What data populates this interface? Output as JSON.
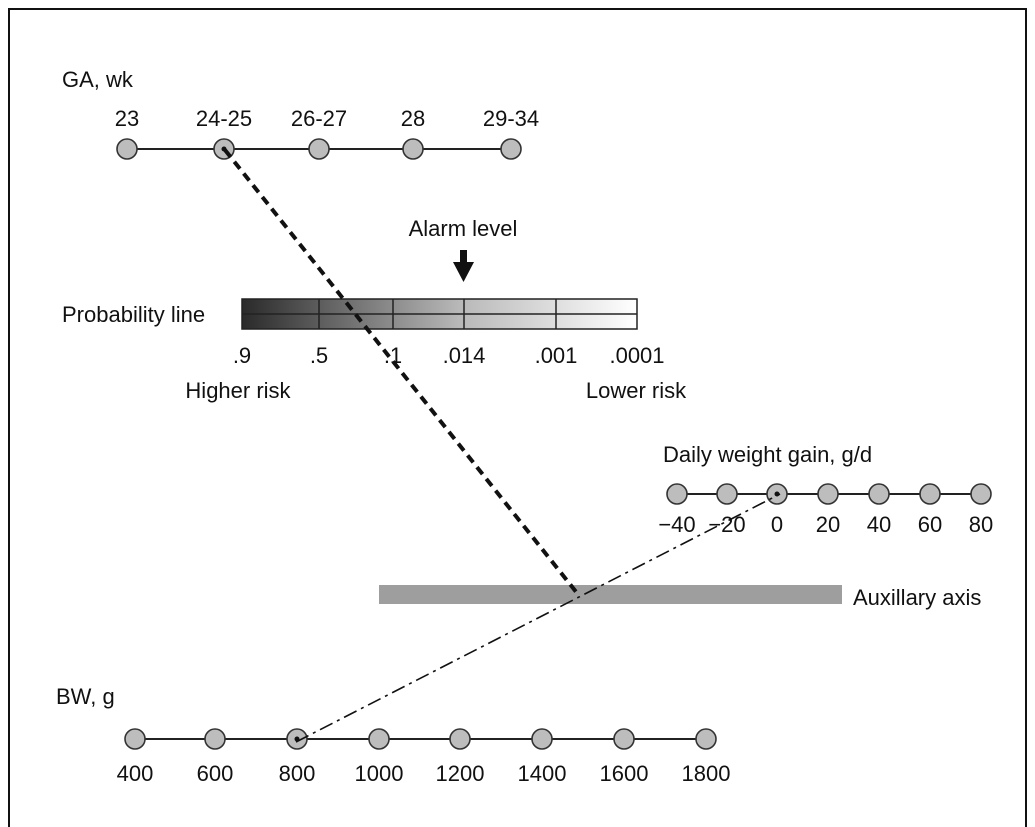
{
  "ga": {
    "title": "GA, wk",
    "labels": [
      "23",
      "24-25",
      "26-27",
      "28",
      "29-34"
    ],
    "selected_index": 1
  },
  "probability": {
    "title": "Probability line",
    "labels": [
      ".9",
      ".5",
      ".1",
      ".014",
      ".001",
      ".0001"
    ],
    "higher_label": "Higher risk",
    "lower_label": "Lower risk",
    "alarm_label": "Alarm level"
  },
  "weight_gain": {
    "title": "Daily weight gain, g/d",
    "labels": [
      "−40",
      "−20",
      "0",
      "20",
      "40",
      "60",
      "80"
    ],
    "selected_index": 2
  },
  "auxiliary": {
    "label": "Auxillary axis"
  },
  "bw": {
    "title": "BW, g",
    "labels": [
      "400",
      "600",
      "800",
      "1000",
      "1200",
      "1400",
      "1600",
      "1800"
    ],
    "selected_index": 2
  },
  "colors": {
    "node_fill": "#bdbdbd",
    "aux_bar": "#9e9e9e",
    "gradient_dark": "#2a2a2a",
    "gradient_light": "#ffffff"
  }
}
